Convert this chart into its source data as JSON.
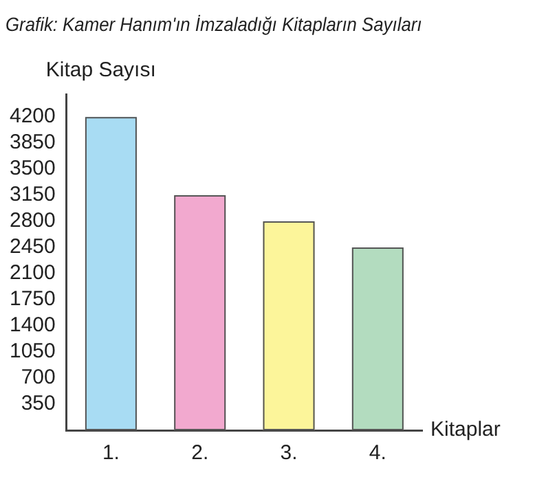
{
  "chart_data": {
    "type": "bar",
    "title": "Grafik: Kamer Hanım'ın İmzaladığı Kitapların Sayıları",
    "xlabel": "Kitaplar",
    "ylabel": "Kitap Sayısı",
    "categories": [
      "1.",
      "2.",
      "3.",
      "4."
    ],
    "values": [
      4200,
      3150,
      2800,
      2450
    ],
    "colors": [
      "#a8dcf3",
      "#f2a9cf",
      "#fcf59a",
      "#b3dcbf"
    ],
    "ylim": [
      0,
      4500
    ],
    "yticks": [
      350,
      700,
      1050,
      1400,
      1750,
      2100,
      2450,
      2800,
      3150,
      3500,
      3850,
      4200
    ],
    "grid": false
  }
}
